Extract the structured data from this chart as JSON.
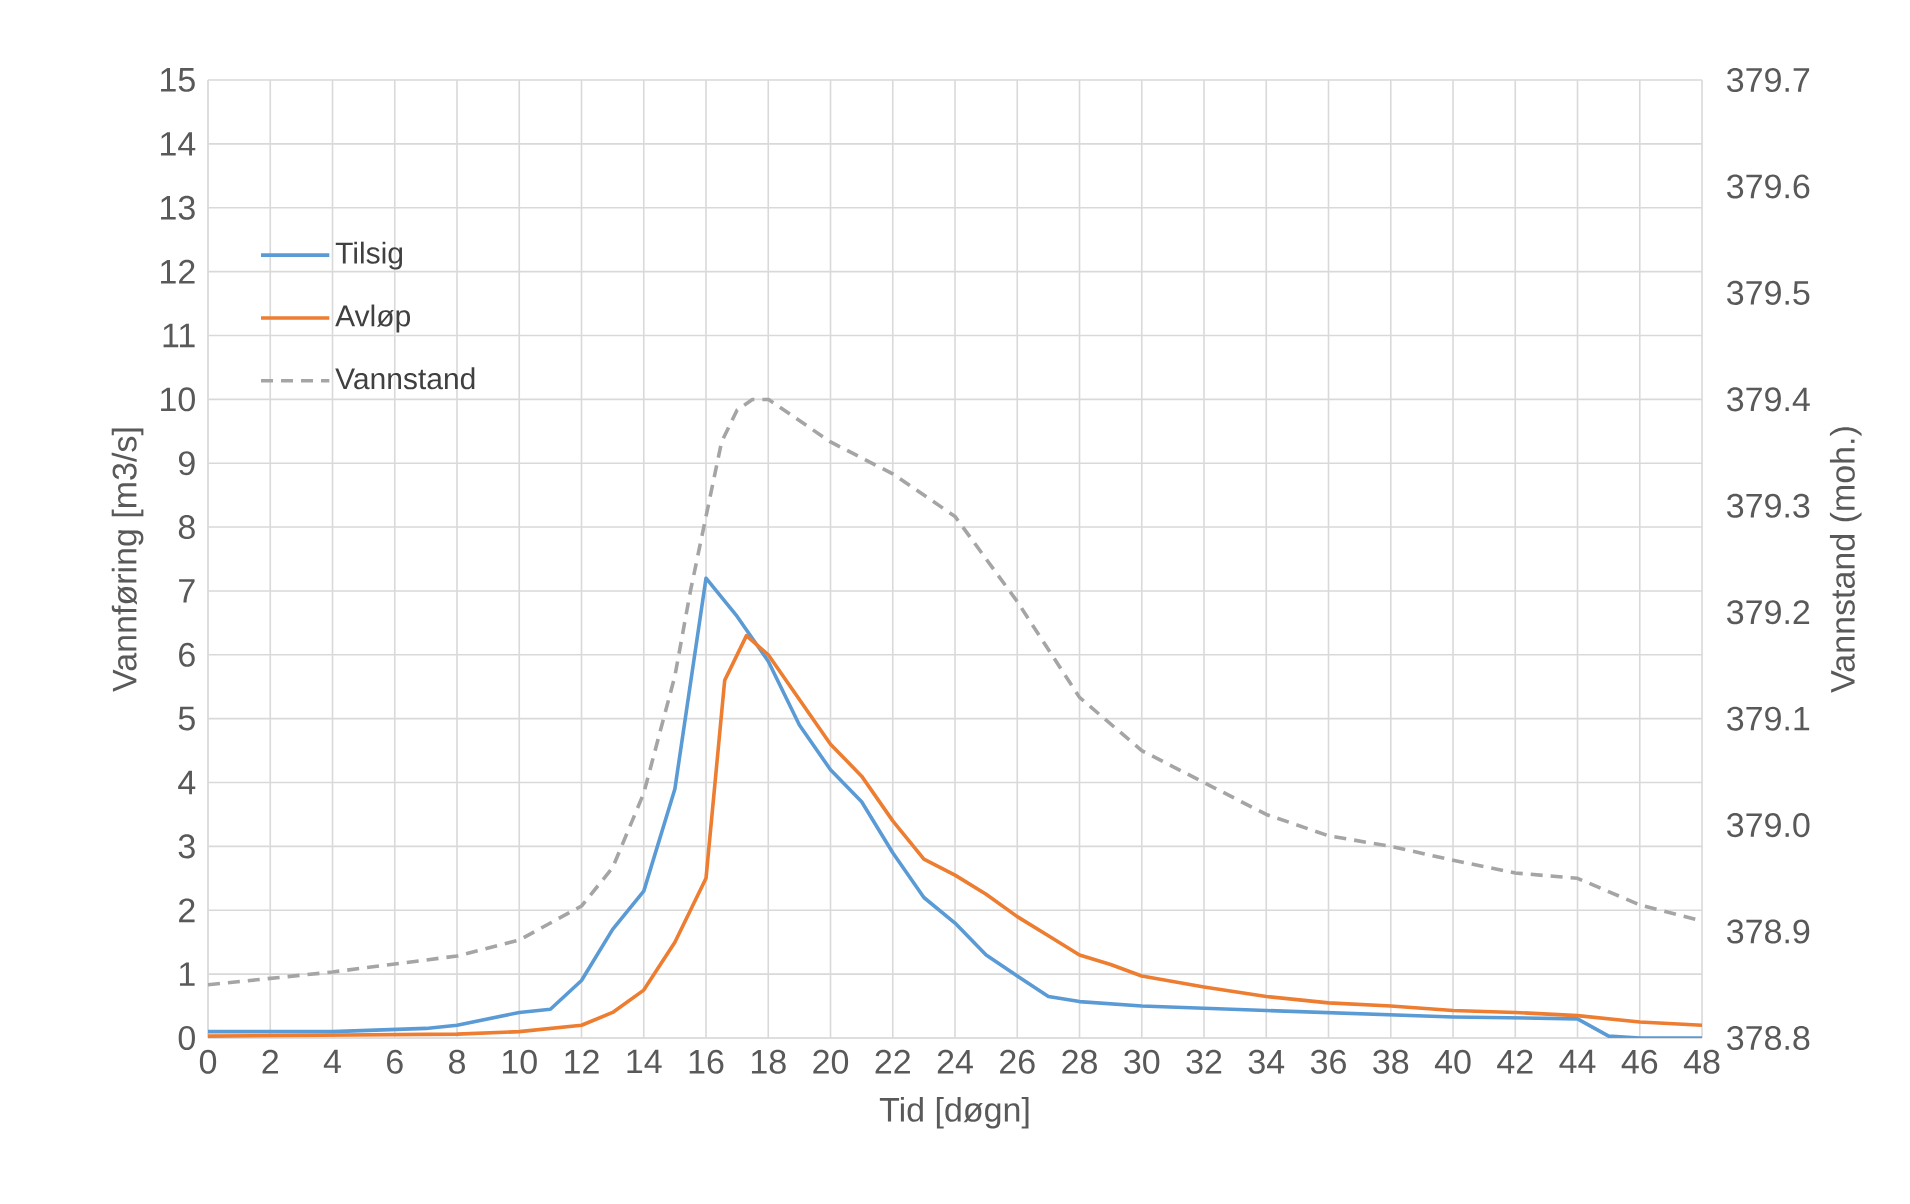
{
  "chart_data": {
    "type": "line",
    "xlabel": "Tid [døgn]",
    "ylabel": "Vannføring [m3/s]",
    "y2label": "Vannstand (moh.)",
    "xlim": [
      0,
      48
    ],
    "xticks": [
      0,
      2,
      4,
      6,
      8,
      10,
      12,
      14,
      16,
      18,
      20,
      22,
      24,
      26,
      28,
      30,
      32,
      34,
      36,
      38,
      40,
      42,
      44,
      46,
      48
    ],
    "ylim": [
      0,
      15
    ],
    "yticks": [
      0,
      1,
      2,
      3,
      4,
      5,
      6,
      7,
      8,
      9,
      10,
      11,
      12,
      13,
      14,
      15
    ],
    "y2lim": [
      378.8,
      379.7
    ],
    "y2ticks": [
      378.8,
      378.9,
      {
        "value": 379.0,
        "label": "379.0"
      },
      379.1,
      379.2,
      379.3,
      379.4,
      379.5,
      379.6,
      379.7
    ],
    "grid": true,
    "legend": "top left",
    "marker": "none",
    "series": [
      {
        "name": "Tilsig",
        "color": "#5b9bd5",
        "line_style": "solid",
        "x": [
          0,
          4,
          7,
          8,
          10,
          11,
          12,
          13,
          14,
          15,
          16,
          17,
          18,
          19,
          20,
          21,
          22,
          23,
          24,
          25,
          26,
          27,
          28,
          30,
          34,
          40,
          44,
          45,
          46,
          48
        ],
        "values": [
          0.1,
          0.1,
          0.15,
          0.2,
          0.4,
          0.45,
          0.9,
          1.7,
          2.3,
          3.9,
          7.2,
          6.6,
          5.9,
          4.9,
          4.2,
          3.7,
          2.9,
          2.2,
          1.8,
          1.3,
          0.97,
          0.65,
          0.57,
          0.5,
          0.43,
          0.33,
          0.3,
          0.03,
          0,
          0
        ]
      },
      {
        "name": "Avløp",
        "color": "#ed7d31",
        "line_style": "solid",
        "x": [
          0,
          8,
          10,
          12,
          13,
          14,
          15,
          16,
          16.6,
          17.3,
          18,
          19,
          20,
          21,
          22,
          23,
          24,
          25,
          26,
          27,
          28,
          29,
          30,
          32,
          34,
          36,
          38,
          40,
          42,
          44,
          46,
          48
        ],
        "values": [
          0.03,
          0.06,
          0.1,
          0.2,
          0.4,
          0.75,
          1.5,
          2.5,
          5.6,
          6.3,
          6.0,
          5.3,
          4.6,
          4.1,
          3.4,
          2.8,
          2.55,
          2.25,
          1.9,
          1.6,
          1.3,
          1.15,
          0.97,
          0.8,
          0.65,
          0.55,
          0.5,
          0.43,
          0.4,
          0.35,
          0.25,
          0.2
        ]
      },
      {
        "name": "Vannstand",
        "color": "#a5a5a5",
        "line_style": "dashed",
        "axis": "y2",
        "x": [
          0,
          4,
          8,
          10,
          12,
          13,
          14,
          15,
          15.5,
          16,
          16.5,
          17,
          17.5,
          18,
          20,
          22,
          24,
          26,
          28,
          30,
          32,
          34,
          36,
          38,
          40,
          42,
          44,
          46,
          48
        ],
        "values": [
          378.85,
          378.862,
          378.877,
          378.892,
          378.924,
          378.96,
          379.03,
          379.14,
          379.22,
          379.29,
          379.36,
          379.39,
          379.4,
          379.4,
          379.36,
          379.33,
          379.29,
          379.21,
          379.12,
          379.07,
          379.04,
          379.01,
          378.99,
          378.98,
          378.967,
          378.955,
          378.95,
          378.925,
          378.91
        ]
      }
    ]
  }
}
